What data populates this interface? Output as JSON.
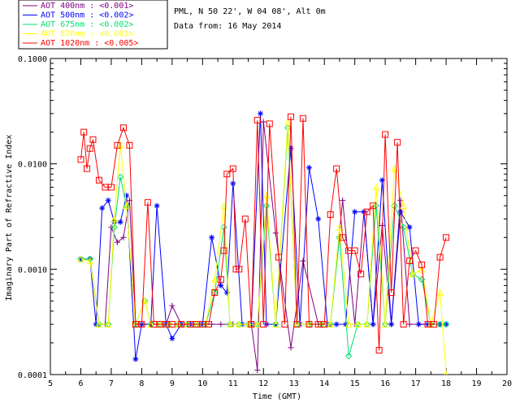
{
  "header": {
    "site_line": "PML, N 50 22', W 04 08', Alt 0m",
    "date_line": "Data from: 16 May 2014"
  },
  "legend": {
    "entries": [
      {
        "label": "AOT  400nm : <0.001>",
        "color": "#800080"
      },
      {
        "label": "AOT  500nm : <0.002>",
        "color": "#0000ff"
      },
      {
        "label": "AOT  675nm : <0.002>",
        "color": "#00e070"
      },
      {
        "label": "AOT  870nm : <0.003>",
        "color": "#ffff00"
      },
      {
        "label": "AOT 1020nm : <0.005>",
        "color": "#ff0000"
      }
    ]
  },
  "chart_data": {
    "type": "line",
    "title": "",
    "xlabel": "Time (GMT)",
    "ylabel": "Imaginary Part of Refractive Index",
    "xlim": [
      5,
      20
    ],
    "ylim": [
      0.0001,
      0.1
    ],
    "yscale": "log",
    "x_ticks": [
      "5",
      "6",
      "7",
      "8",
      "9",
      "10",
      "11",
      "12",
      "13",
      "14",
      "15",
      "16",
      "17",
      "18",
      "19",
      "20"
    ],
    "y_ticks": [
      "0.0001",
      "0.0010",
      "0.0100",
      "0.1000"
    ],
    "series": [
      {
        "name": "AOT 400nm",
        "color": "#800080",
        "marker": "plus",
        "x": [
          6.0,
          6.3,
          6.6,
          6.8,
          7.0,
          7.2,
          7.4,
          7.6,
          7.8,
          8.0,
          8.3,
          8.5,
          8.8,
          9.0,
          9.3,
          9.6,
          10.0,
          10.3,
          10.6,
          11.0,
          11.3,
          11.6,
          11.8,
          12.0,
          12.4,
          12.9,
          13.3,
          13.8,
          14.2,
          14.6,
          15.0,
          15.3,
          15.6,
          15.9,
          16.2,
          16.5,
          16.8,
          17.1,
          17.5,
          18.0
        ],
        "y": [
          0.00125,
          0.00125,
          0.0003,
          0.0003,
          0.0025,
          0.0018,
          0.002,
          0.0045,
          0.0003,
          0.0003,
          0.0003,
          0.0003,
          0.0003,
          0.00045,
          0.0003,
          0.0003,
          0.0003,
          0.0003,
          0.0003,
          0.0003,
          0.0003,
          0.0003,
          0.00011,
          0.025,
          0.0022,
          0.00018,
          0.0012,
          0.0003,
          0.0003,
          0.0045,
          0.0003,
          0.0035,
          0.0003,
          0.0026,
          0.0003,
          0.0045,
          0.0003,
          0.0003,
          0.0003,
          0.0003
        ]
      },
      {
        "name": "AOT 500nm",
        "color": "#0000ff",
        "marker": "star",
        "x": [
          6.0,
          6.3,
          6.5,
          6.7,
          6.9,
          7.1,
          7.3,
          7.5,
          7.8,
          8.0,
          8.3,
          8.5,
          8.8,
          9.0,
          9.3,
          9.6,
          10.0,
          10.3,
          10.6,
          10.8,
          11.0,
          11.3,
          11.6,
          11.9,
          12.1,
          12.4,
          12.9,
          13.2,
          13.5,
          13.8,
          14.1,
          14.4,
          14.7,
          15.0,
          15.3,
          15.6,
          15.9,
          16.2,
          16.5,
          16.8,
          17.1,
          17.4,
          17.8,
          18.0
        ],
        "y": [
          0.00125,
          0.00125,
          0.0003,
          0.0038,
          0.0045,
          0.0028,
          0.0028,
          0.005,
          0.00014,
          0.0003,
          0.0003,
          0.004,
          0.0003,
          0.00022,
          0.0003,
          0.0003,
          0.0003,
          0.002,
          0.0007,
          0.0006,
          0.0065,
          0.0003,
          0.0003,
          0.03,
          0.0003,
          0.0003,
          0.014,
          0.0003,
          0.0092,
          0.003,
          0.0003,
          0.0003,
          0.0003,
          0.0035,
          0.0035,
          0.0003,
          0.007,
          0.0003,
          0.0035,
          0.0025,
          0.0003,
          0.0003,
          0.0003,
          0.0003
        ]
      },
      {
        "name": "AOT 675nm",
        "color": "#00e070",
        "marker": "diamond",
        "x": [
          6.0,
          6.3,
          6.6,
          6.9,
          7.1,
          7.3,
          7.5,
          7.8,
          8.1,
          8.3,
          8.6,
          8.9,
          9.2,
          9.5,
          9.8,
          10.1,
          10.4,
          10.7,
          10.9,
          11.2,
          11.5,
          11.8,
          12.1,
          12.4,
          12.8,
          13.1,
          13.5,
          13.9,
          14.2,
          14.5,
          14.8,
          15.1,
          15.4,
          15.7,
          16.0,
          16.3,
          16.6,
          16.9,
          17.2,
          17.5,
          17.8,
          18.0
        ],
        "y": [
          0.00125,
          0.00125,
          0.0003,
          0.0003,
          0.0025,
          0.0075,
          0.004,
          0.0003,
          0.0005,
          0.0003,
          0.0003,
          0.0003,
          0.0003,
          0.0003,
          0.0003,
          0.0003,
          0.0006,
          0.0025,
          0.0003,
          0.0003,
          0.0003,
          0.0003,
          0.004,
          0.0003,
          0.022,
          0.0003,
          0.0003,
          0.0003,
          0.0003,
          0.002,
          0.00015,
          0.0003,
          0.0003,
          0.004,
          0.0003,
          0.004,
          0.0025,
          0.0009,
          0.0008,
          0.0003,
          0.0003,
          0.0003
        ]
      },
      {
        "name": "AOT 870nm",
        "color": "#ffff00",
        "marker": "triangle",
        "x": [
          6.0,
          6.3,
          6.6,
          6.9,
          7.1,
          7.3,
          7.5,
          7.8,
          8.1,
          8.3,
          8.6,
          8.9,
          9.2,
          9.5,
          9.8,
          10.1,
          10.4,
          10.7,
          10.9,
          11.2,
          11.5,
          11.8,
          12.1,
          12.4,
          12.8,
          13.1,
          13.5,
          13.9,
          14.2,
          14.5,
          14.8,
          15.1,
          15.4,
          15.7,
          16.0,
          16.3,
          16.6,
          16.9,
          17.2,
          17.5,
          17.8,
          18.0
        ],
        "y": [
          0.00125,
          0.0012,
          0.0003,
          0.0003,
          0.003,
          0.015,
          0.004,
          0.0003,
          0.0005,
          0.0003,
          0.0003,
          0.0003,
          0.0003,
          0.0003,
          0.0003,
          0.0003,
          0.0008,
          0.004,
          0.0003,
          0.0003,
          0.0003,
          0.0003,
          0.005,
          0.0003,
          0.025,
          0.0003,
          0.0003,
          0.0003,
          0.0003,
          0.0025,
          0.0003,
          0.0003,
          0.0003,
          0.006,
          0.0003,
          0.009,
          0.004,
          0.0009,
          0.001,
          0.0003,
          0.0006,
          0.0001
        ]
      },
      {
        "name": "AOT 1020nm",
        "color": "#ff0000",
        "marker": "square",
        "x": [
          6.0,
          6.1,
          6.2,
          6.3,
          6.4,
          6.6,
          6.8,
          7.0,
          7.2,
          7.4,
          7.6,
          7.8,
          8.0,
          8.2,
          8.4,
          8.6,
          8.8,
          9.0,
          9.3,
          9.6,
          9.8,
          10.0,
          10.2,
          10.4,
          10.6,
          10.7,
          10.8,
          11.0,
          11.1,
          11.2,
          11.4,
          11.6,
          11.8,
          12.0,
          12.2,
          12.5,
          12.7,
          12.9,
          13.1,
          13.3,
          13.5,
          13.8,
          14.0,
          14.2,
          14.4,
          14.6,
          14.8,
          15.0,
          15.2,
          15.4,
          15.6,
          15.8,
          16.0,
          16.2,
          16.4,
          16.6,
          16.8,
          17.0,
          17.2,
          17.4,
          17.6,
          17.8,
          18.0
        ],
        "y": [
          0.011,
          0.02,
          0.009,
          0.014,
          0.017,
          0.007,
          0.006,
          0.006,
          0.015,
          0.022,
          0.015,
          0.0003,
          0.0003,
          0.0043,
          0.0003,
          0.0003,
          0.0003,
          0.0003,
          0.0003,
          0.0003,
          0.0003,
          0.0003,
          0.0003,
          0.0006,
          0.0008,
          0.0015,
          0.008,
          0.009,
          0.001,
          0.001,
          0.003,
          0.0003,
          0.026,
          0.0003,
          0.024,
          0.0013,
          0.0003,
          0.028,
          0.0003,
          0.027,
          0.0003,
          0.0003,
          0.0003,
          0.0033,
          0.009,
          0.002,
          0.0015,
          0.0015,
          0.0009,
          0.0035,
          0.004,
          0.00017,
          0.019,
          0.0006,
          0.016,
          0.0003,
          0.0012,
          0.0015,
          0.0011,
          0.0003,
          0.0003,
          0.0013,
          0.002
        ]
      }
    ]
  }
}
